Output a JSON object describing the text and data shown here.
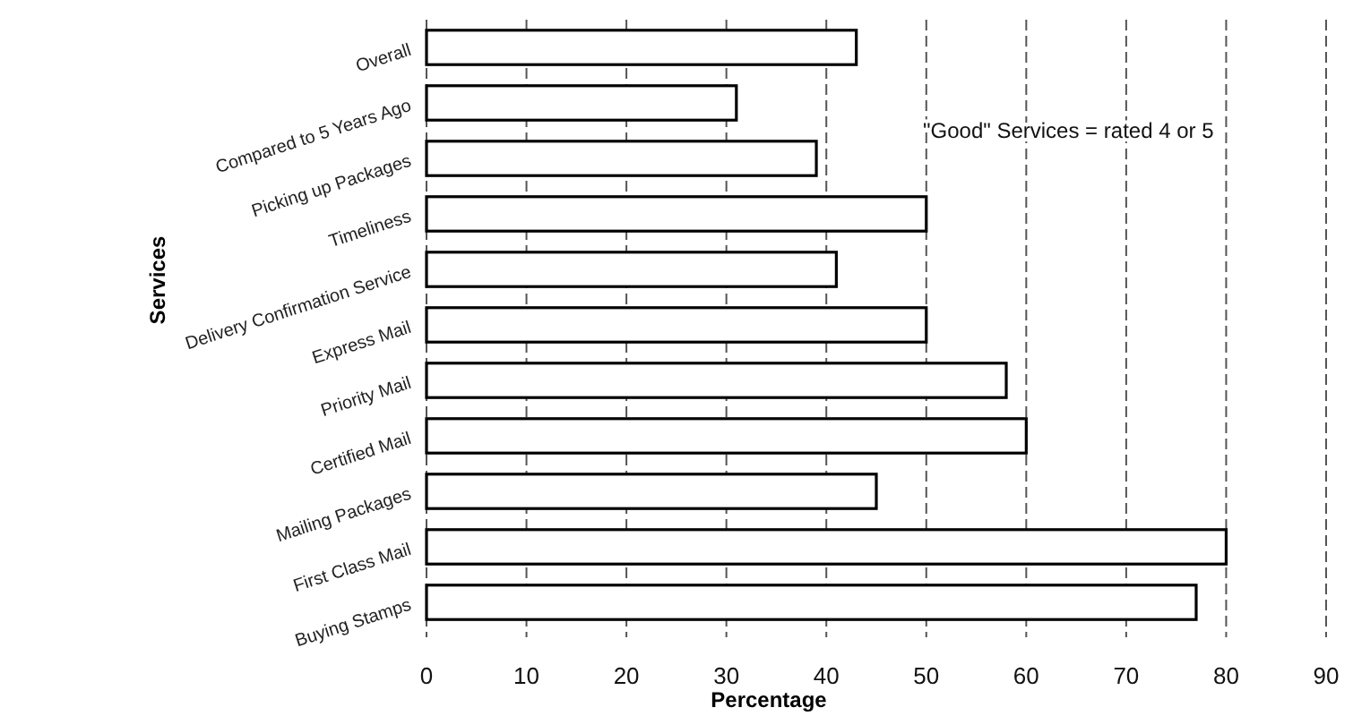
{
  "chart_data": {
    "type": "bar",
    "orientation": "horizontal",
    "xlabel": "Percentage",
    "ylabel": "Services",
    "categories": [
      "Overall",
      "Compared to 5 Years Ago",
      "Picking up Packages",
      "Timeliness",
      "Delivery Confirmation Service",
      "Express Mail",
      "Priority Mail",
      "Certified Mail",
      "Mailing Packages",
      "First Class Mail",
      "Buying Stamps"
    ],
    "values": [
      43,
      31,
      39,
      50,
      41,
      50,
      58,
      60,
      45,
      80,
      77
    ],
    "color": "#ffffff",
    "xlim": [
      0,
      90
    ],
    "xticks": [
      0,
      10,
      20,
      30,
      40,
      50,
      60,
      70,
      80,
      90
    ],
    "grid": "x",
    "annotations": [
      "\"Good\" Services = rated 4 or 5"
    ]
  }
}
